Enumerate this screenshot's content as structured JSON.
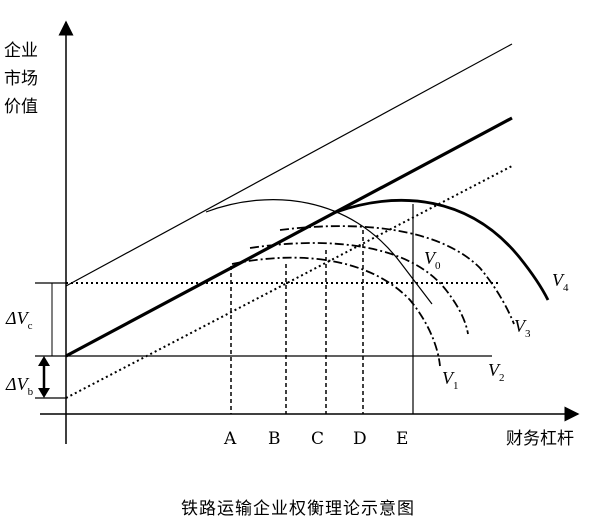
{
  "axes": {
    "y_label_lines": [
      "企业",
      "市场",
      "价值"
    ],
    "x_label": "财务杠杆"
  },
  "x_ticks": [
    "A",
    "B",
    "C",
    "D",
    "E"
  ],
  "delta_labels": {
    "vc": {
      "main": "ΔV",
      "sub": "c"
    },
    "vb": {
      "main": "ΔV",
      "sub": "b"
    }
  },
  "curve_labels": {
    "v0": {
      "main": "V",
      "sub": "0"
    },
    "v1": {
      "main": "V",
      "sub": "1"
    },
    "v2": {
      "main": "V",
      "sub": "2"
    },
    "v3": {
      "main": "V",
      "sub": "3"
    },
    "v4": {
      "main": "V",
      "sub": "4"
    }
  },
  "caption": "铁路运输企业权衡理论示意图"
}
